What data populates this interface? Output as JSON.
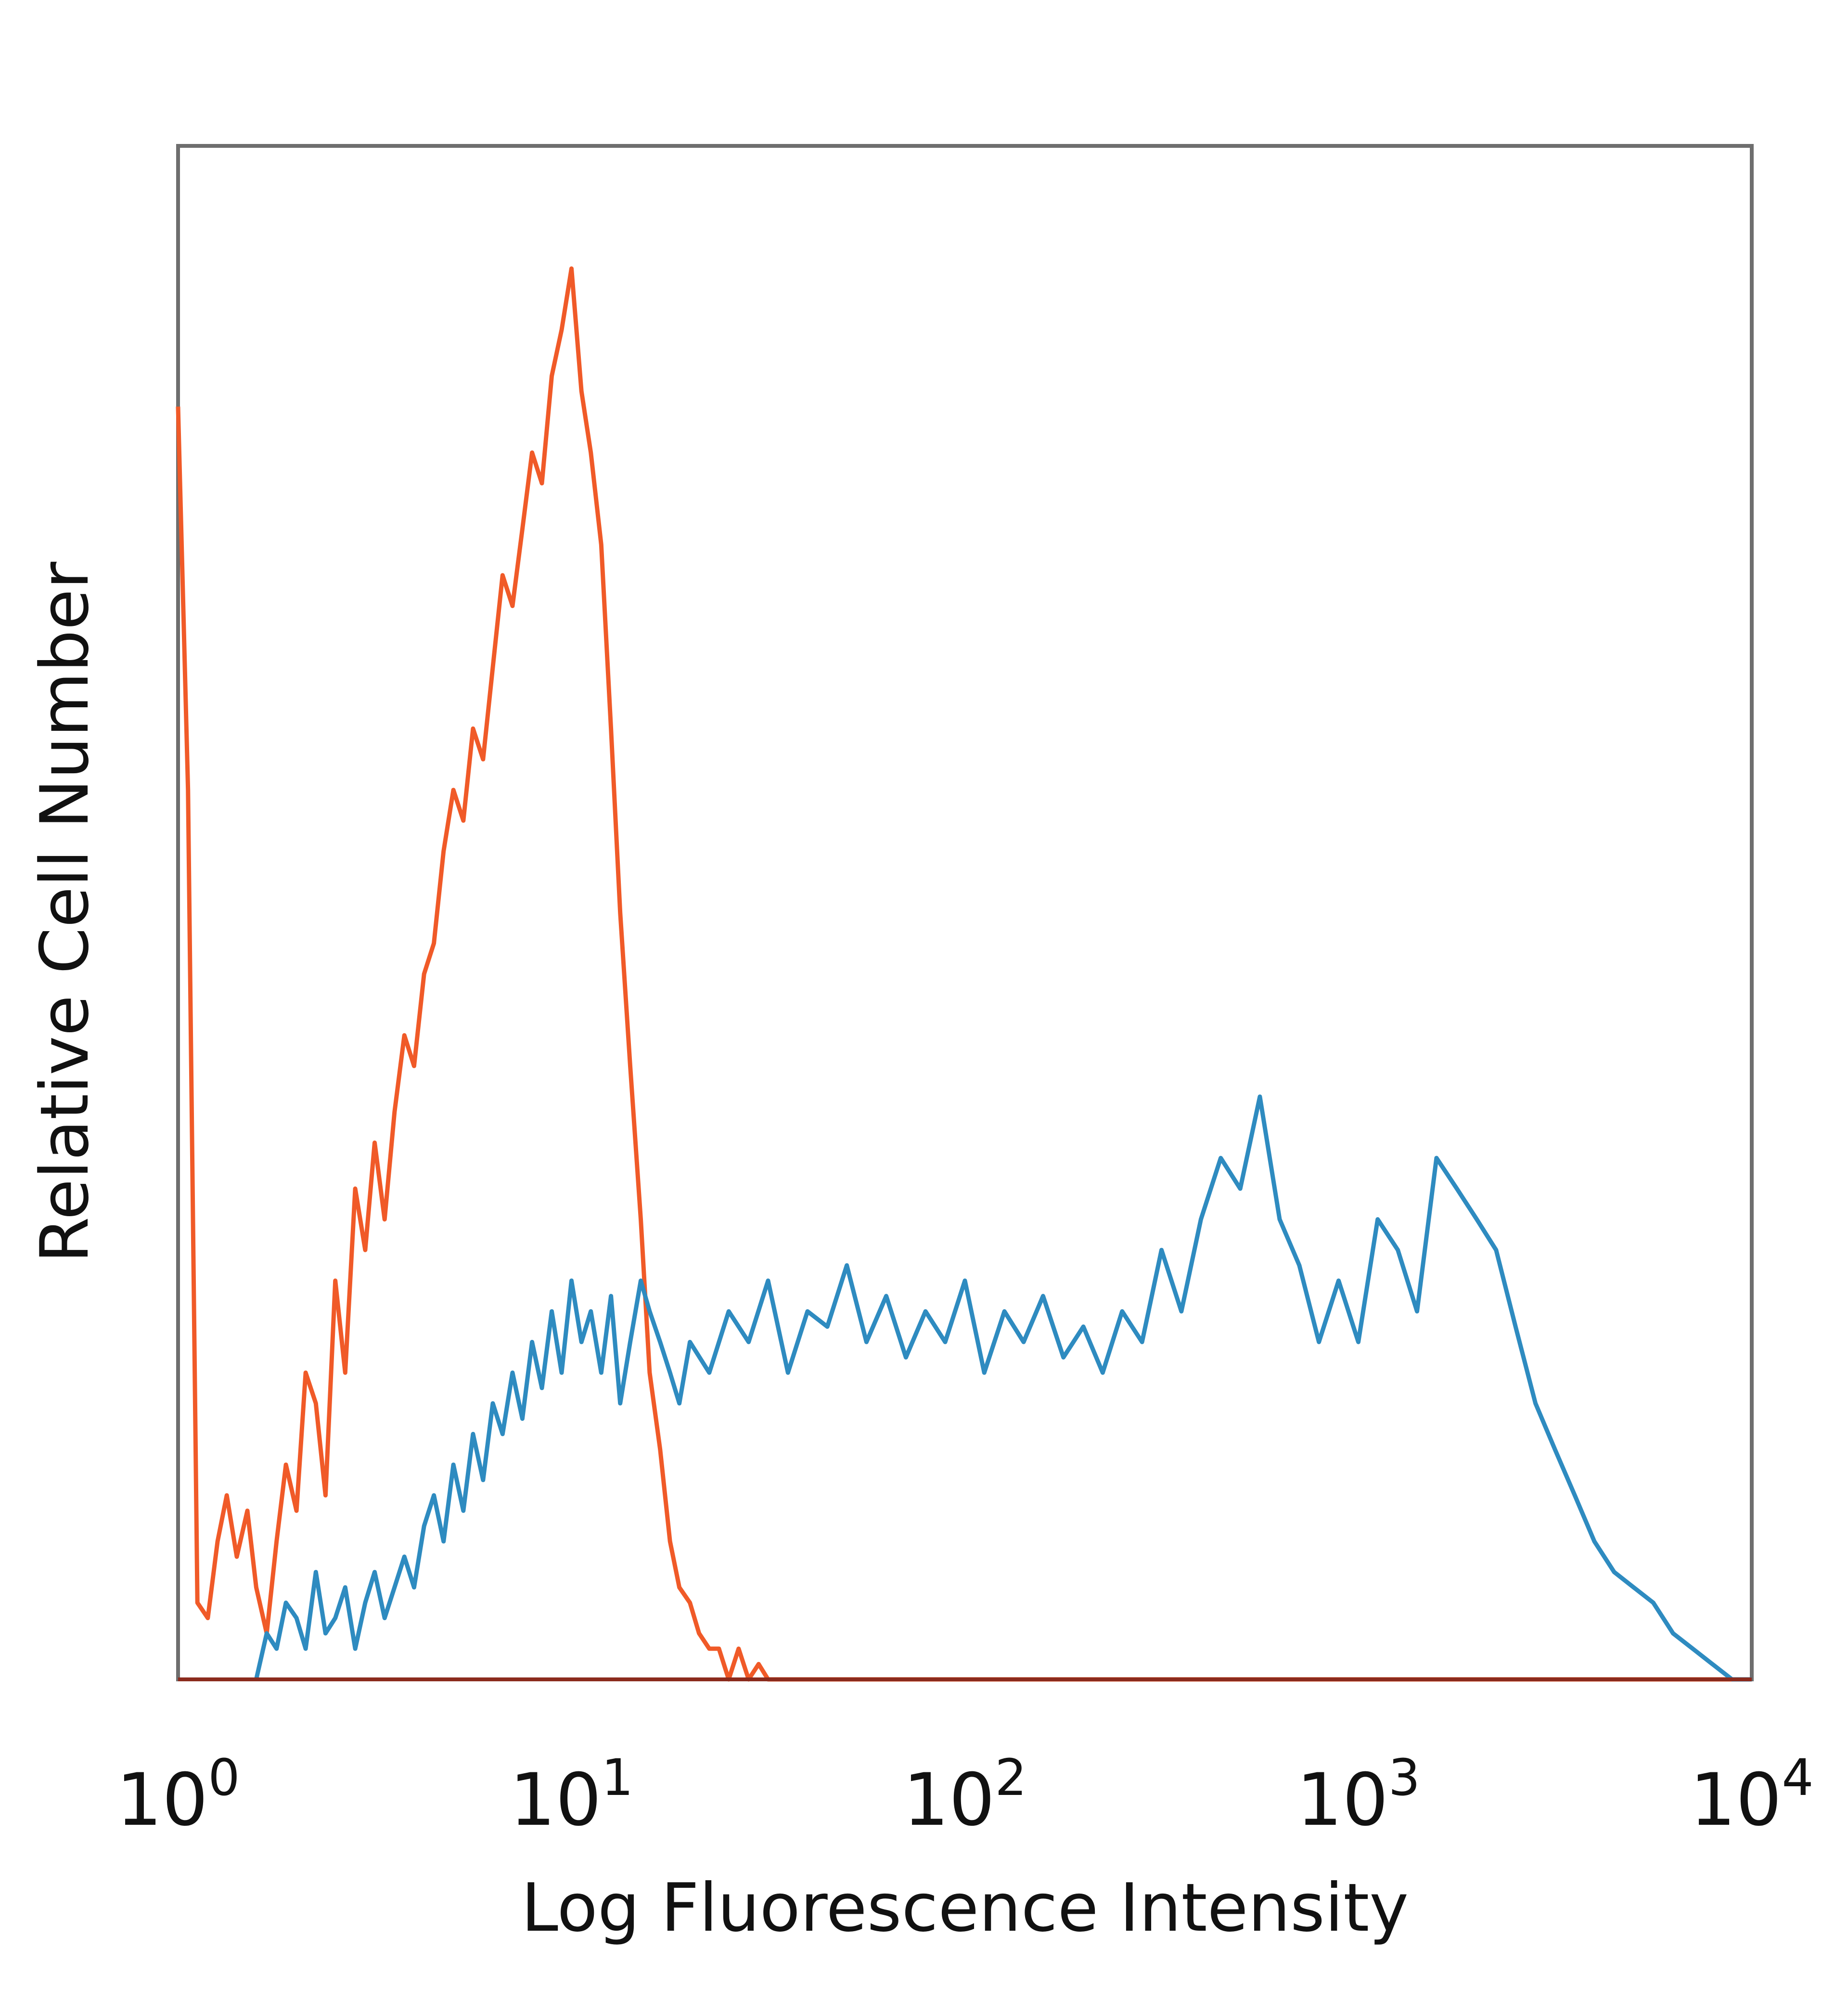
{
  "chart_data": {
    "type": "line",
    "title": "",
    "xlabel": "Log Fluorescence Intensity",
    "ylabel": "Relative Cell Number",
    "x_scale": "log",
    "xlim": [
      1,
      10000
    ],
    "ylim": [
      0,
      100
    ],
    "grid": false,
    "legend": "none",
    "x_ticks": [
      {
        "value": 1,
        "base": "10",
        "exp": "0"
      },
      {
        "value": 10,
        "base": "10",
        "exp": "1"
      },
      {
        "value": 100,
        "base": "10",
        "exp": "2"
      },
      {
        "value": 1000,
        "base": "10",
        "exp": "3"
      },
      {
        "value": 10000,
        "base": "10",
        "exp": "4"
      }
    ],
    "series": [
      {
        "color": "#f05a28",
        "x": [
          1,
          1.06,
          1.12,
          1.19,
          1.26,
          1.33,
          1.41,
          1.5,
          1.58,
          1.68,
          1.78,
          1.88,
          2,
          2.11,
          2.24,
          2.37,
          2.51,
          2.66,
          2.82,
          2.99,
          3.16,
          3.35,
          3.55,
          3.76,
          3.98,
          4.22,
          4.47,
          4.73,
          5.01,
          5.31,
          5.62,
          5.96,
          6.31,
          6.68,
          7.08,
          7.5,
          7.94,
          8.41,
          8.91,
          9.44,
          10,
          10.6,
          11.2,
          11.9,
          12.6,
          13.3,
          14.1,
          15,
          15.8,
          16.8,
          17.8,
          18.8,
          20,
          21.1,
          22.4,
          23.7,
          25.1,
          26.6,
          28.2,
          29.9,
          31.6,
          33.5,
          35.5,
          40,
          100,
          1000,
          10000
        ],
        "y": [
          83,
          58,
          5,
          4,
          9,
          12,
          8,
          11,
          6,
          3,
          9,
          14,
          11,
          20,
          18,
          12,
          26,
          20,
          32,
          28,
          35,
          30,
          37,
          42,
          40,
          46,
          48,
          54,
          58,
          56,
          62,
          60,
          66,
          72,
          70,
          75,
          80,
          78,
          85,
          88,
          92,
          84,
          80,
          74,
          62,
          50,
          40,
          30,
          20,
          15,
          9,
          6,
          5,
          3,
          2,
          2,
          0,
          2,
          0,
          1,
          0,
          0,
          0,
          0,
          0,
          0,
          0
        ]
      },
      {
        "color": "#2e8bc0",
        "x": [
          1.58,
          1.68,
          1.78,
          1.88,
          2,
          2.11,
          2.24,
          2.37,
          2.51,
          2.66,
          2.82,
          2.99,
          3.16,
          3.35,
          3.55,
          3.76,
          3.98,
          4.22,
          4.47,
          4.73,
          5.01,
          5.31,
          5.62,
          5.96,
          6.31,
          6.68,
          7.08,
          7.5,
          7.94,
          8.41,
          8.91,
          9.44,
          10,
          10.6,
          11.2,
          11.9,
          12.6,
          13.3,
          14.1,
          15,
          15.8,
          16.8,
          17.8,
          18.8,
          20,
          22.4,
          25.1,
          28.2,
          31.6,
          35.5,
          39.8,
          44.7,
          50.1,
          56.2,
          63.1,
          70.8,
          79.4,
          89.1,
          100,
          112,
          126,
          141,
          158,
          178,
          200,
          224,
          251,
          282,
          316,
          355,
          398,
          447,
          501,
          562,
          631,
          708,
          794,
          891,
          1000,
          1120,
          1260,
          1410,
          1580,
          1780,
          2000,
          2240,
          2510,
          2820,
          3160,
          3550,
          3980,
          4470,
          5010,
          5620,
          6310,
          7080,
          7940,
          8910,
          10000
        ],
        "y": [
          0,
          3,
          2,
          5,
          4,
          2,
          7,
          3,
          4,
          6,
          2,
          5,
          7,
          4,
          6,
          8,
          6,
          10,
          12,
          9,
          14,
          11,
          16,
          13,
          18,
          16,
          20,
          17,
          22,
          19,
          24,
          20,
          26,
          22,
          24,
          20,
          25,
          18,
          22,
          26,
          24,
          22,
          20,
          18,
          22,
          20,
          24,
          22,
          26,
          20,
          24,
          23,
          27,
          22,
          25,
          21,
          24,
          22,
          26,
          20,
          24,
          22,
          25,
          21,
          23,
          20,
          24,
          22,
          28,
          24,
          30,
          34,
          32,
          38,
          30,
          27,
          22,
          26,
          22,
          30,
          28,
          24,
          34,
          32,
          30,
          28,
          23,
          18,
          15,
          12,
          9,
          7,
          6,
          5,
          3,
          2,
          1,
          0,
          0
        ]
      }
    ]
  }
}
